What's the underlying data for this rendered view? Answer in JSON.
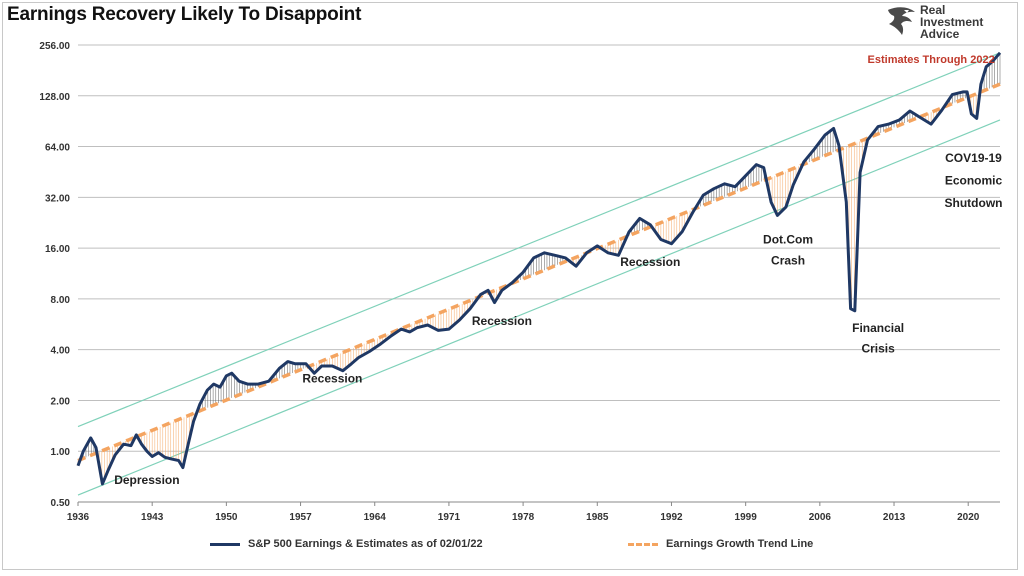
{
  "title": "Earnings Recovery Likely To Disappoint",
  "logo": {
    "line1": "Real",
    "line2": "Investment",
    "line3": "Advice"
  },
  "colors": {
    "earnings": "#1f3864",
    "trend": "#f4a460",
    "channel": "#7fd1b9",
    "grid": "#bfbfbf",
    "fill": "#555555",
    "estimate": "#c0392b"
  },
  "legend": {
    "earnings": "S&P 500 Earnings & Estimates as of 02/01/22",
    "trend": "Earnings Growth Trend Line"
  },
  "chart_data": {
    "type": "line",
    "title": "Earnings Recovery Likely To Disappoint",
    "xlabel": "",
    "ylabel": "",
    "yscale": "log2",
    "ylim": [
      0.5,
      256
    ],
    "xlim": [
      1936,
      2023
    ],
    "y_ticks": [
      "256.00",
      "128.00",
      "64.00",
      "32.00",
      "16.00",
      "8.00",
      "4.00",
      "2.00",
      "1.00",
      "0.50"
    ],
    "x_ticks": [
      "1936",
      "1943",
      "1950",
      "1957",
      "1964",
      "1971",
      "1978",
      "1985",
      "1992",
      "1999",
      "2006",
      "2013",
      "2020"
    ],
    "grid": true,
    "legend_position": "bottom",
    "series": [
      {
        "name": "S&P 500 Earnings & Estimates as of 02/01/22",
        "style": "solid",
        "points": [
          [
            1936.0,
            0.82
          ],
          [
            1936.5,
            1.0
          ],
          [
            1937.2,
            1.2
          ],
          [
            1937.7,
            1.05
          ],
          [
            1938.3,
            0.64
          ],
          [
            1938.8,
            0.76
          ],
          [
            1939.5,
            0.95
          ],
          [
            1940.3,
            1.1
          ],
          [
            1941.0,
            1.08
          ],
          [
            1941.5,
            1.25
          ],
          [
            1942.0,
            1.1
          ],
          [
            1942.5,
            1.0
          ],
          [
            1943.0,
            0.93
          ],
          [
            1943.6,
            0.98
          ],
          [
            1944.2,
            0.92
          ],
          [
            1944.8,
            0.9
          ],
          [
            1945.5,
            0.88
          ],
          [
            1945.9,
            0.8
          ],
          [
            1946.4,
            1.1
          ],
          [
            1946.9,
            1.5
          ],
          [
            1947.5,
            1.9
          ],
          [
            1948.2,
            2.3
          ],
          [
            1948.8,
            2.5
          ],
          [
            1949.4,
            2.4
          ],
          [
            1950.0,
            2.8
          ],
          [
            1950.5,
            2.9
          ],
          [
            1951.2,
            2.6
          ],
          [
            1952.0,
            2.5
          ],
          [
            1953.0,
            2.5
          ],
          [
            1954.0,
            2.6
          ],
          [
            1955.0,
            3.1
          ],
          [
            1955.8,
            3.4
          ],
          [
            1956.5,
            3.3
          ],
          [
            1957.5,
            3.3
          ],
          [
            1958.3,
            2.9
          ],
          [
            1959.0,
            3.2
          ],
          [
            1960.0,
            3.2
          ],
          [
            1961.0,
            3.0
          ],
          [
            1961.8,
            3.3
          ],
          [
            1962.5,
            3.6
          ],
          [
            1963.5,
            3.9
          ],
          [
            1964.5,
            4.3
          ],
          [
            1965.5,
            4.8
          ],
          [
            1966.5,
            5.3
          ],
          [
            1967.3,
            5.1
          ],
          [
            1968.0,
            5.4
          ],
          [
            1969.0,
            5.6
          ],
          [
            1970.0,
            5.2
          ],
          [
            1971.0,
            5.3
          ],
          [
            1972.0,
            6.0
          ],
          [
            1973.0,
            7.0
          ],
          [
            1974.0,
            8.5
          ],
          [
            1974.7,
            9.0
          ],
          [
            1975.3,
            7.6
          ],
          [
            1976.0,
            9.0
          ],
          [
            1977.0,
            10.0
          ],
          [
            1978.0,
            11.5
          ],
          [
            1979.0,
            14.0
          ],
          [
            1980.0,
            15.0
          ],
          [
            1981.0,
            14.5
          ],
          [
            1982.0,
            14.0
          ],
          [
            1983.0,
            12.5
          ],
          [
            1984.0,
            15.0
          ],
          [
            1985.0,
            16.5
          ],
          [
            1986.0,
            15.0
          ],
          [
            1987.0,
            14.5
          ],
          [
            1988.0,
            20.0
          ],
          [
            1989.0,
            24.0
          ],
          [
            1990.0,
            22.0
          ],
          [
            1991.0,
            18.0
          ],
          [
            1992.0,
            17.0
          ],
          [
            1993.0,
            20.0
          ],
          [
            1994.0,
            26.0
          ],
          [
            1995.0,
            33.0
          ],
          [
            1996.0,
            36.0
          ],
          [
            1997.0,
            38.5
          ],
          [
            1998.0,
            37.0
          ],
          [
            1999.0,
            43.0
          ],
          [
            2000.0,
            50.0
          ],
          [
            2000.7,
            48.0
          ],
          [
            2001.4,
            30.0
          ],
          [
            2002.0,
            25.0
          ],
          [
            2002.8,
            28.0
          ],
          [
            2003.5,
            38.0
          ],
          [
            2004.5,
            52.0
          ],
          [
            2005.5,
            62.0
          ],
          [
            2006.5,
            75.0
          ],
          [
            2007.3,
            82.0
          ],
          [
            2007.8,
            65.0
          ],
          [
            2008.5,
            30.0
          ],
          [
            2008.9,
            7.0
          ],
          [
            2009.3,
            6.8
          ],
          [
            2009.8,
            45.0
          ],
          [
            2010.5,
            70.0
          ],
          [
            2011.5,
            84.0
          ],
          [
            2012.5,
            87.0
          ],
          [
            2013.5,
            92.0
          ],
          [
            2014.5,
            104.0
          ],
          [
            2015.5,
            95.0
          ],
          [
            2016.5,
            87.0
          ],
          [
            2017.5,
            105.0
          ],
          [
            2018.5,
            130.0
          ],
          [
            2019.5,
            135.0
          ],
          [
            2019.9,
            135.0
          ],
          [
            2020.3,
            100.0
          ],
          [
            2020.8,
            94.0
          ],
          [
            2021.2,
            150.0
          ],
          [
            2021.7,
            190.0
          ],
          [
            2022.3,
            205.0
          ],
          [
            2023.0,
            230.0
          ]
        ]
      },
      {
        "name": "Earnings Growth Trend Line",
        "style": "dashed",
        "points": [
          [
            1936.0,
            0.88
          ],
          [
            2023.0,
            150.0
          ]
        ]
      }
    ],
    "channel_lines": [
      {
        "points": [
          [
            1936.0,
            1.4
          ],
          [
            2023.0,
            230.0
          ]
        ]
      },
      {
        "points": [
          [
            1936.0,
            0.55
          ],
          [
            2023.0,
            92.0
          ]
        ]
      }
    ],
    "annotations": [
      {
        "text": "Estimates Through 2022",
        "x": 2016.5,
        "y": 200.0,
        "color": "red"
      },
      {
        "text": "Depression",
        "x": 1942.5,
        "y": 0.64
      },
      {
        "text": "Recession",
        "x": 1960.0,
        "y": 2.55
      },
      {
        "text": "Recession",
        "x": 1976.0,
        "y": 5.6
      },
      {
        "text": "Recession",
        "x": 1990.0,
        "y": 12.5
      },
      {
        "text": "Dot.Com",
        "x": 2003.0,
        "y": 17.0
      },
      {
        "text": "Crash",
        "x": 2003.0,
        "y": 12.8
      },
      {
        "text": "Financial",
        "x": 2011.5,
        "y": 5.1
      },
      {
        "text": "Crisis",
        "x": 2011.5,
        "y": 3.85
      },
      {
        "text": "COV19-19",
        "x": 2020.5,
        "y": 52.0
      },
      {
        "text": "Economic",
        "x": 2020.5,
        "y": 38.0
      },
      {
        "text": "Shutdown",
        "x": 2020.5,
        "y": 28.0
      }
    ]
  }
}
